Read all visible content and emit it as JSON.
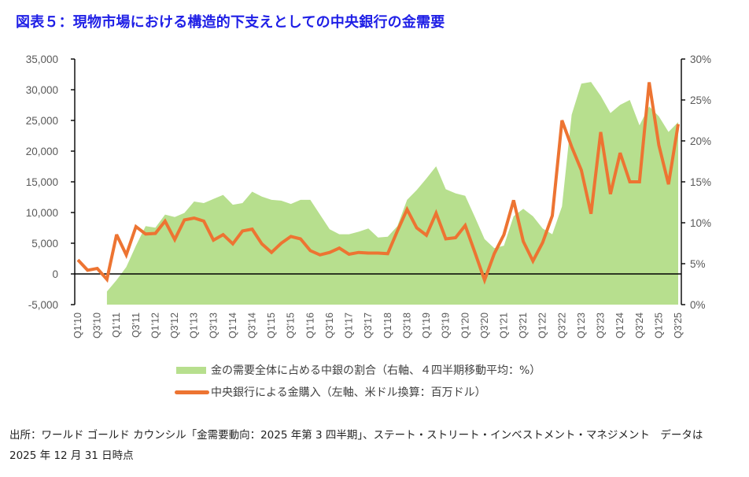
{
  "title": "図表５：現物市場における構造的下支えとしての中央銀行の金需要",
  "chart_data": {
    "type": "line+area",
    "title": "図表５：現物市場における構造的下支えとしての中央銀行の金需要",
    "x": [
      "Q1'10",
      "Q2'10",
      "Q3'10",
      "Q4'10",
      "Q1'11",
      "Q2'11",
      "Q3'11",
      "Q4'11",
      "Q1'12",
      "Q2'12",
      "Q3'12",
      "Q4'12",
      "Q1'13",
      "Q2'13",
      "Q3'13",
      "Q4'13",
      "Q1'14",
      "Q2'14",
      "Q3'14",
      "Q4'14",
      "Q1'15",
      "Q2'15",
      "Q3'15",
      "Q4'15",
      "Q1'16",
      "Q2'16",
      "Q3'16",
      "Q4'16",
      "Q1'17",
      "Q2'17",
      "Q3'17",
      "Q4'17",
      "Q1'18",
      "Q2'18",
      "Q3'18",
      "Q4'18",
      "Q1'19",
      "Q2'19",
      "Q3'19",
      "Q4'19",
      "Q1'20",
      "Q2'20",
      "Q3'20",
      "Q4'20",
      "Q1'21",
      "Q2'21",
      "Q3'21",
      "Q4'21",
      "Q1'22",
      "Q2'22",
      "Q3'22",
      "Q4'22",
      "Q1'23",
      "Q2'23",
      "Q3'23",
      "Q4'23",
      "Q1'24",
      "Q2'24",
      "Q3'24",
      "Q4'24",
      "Q1'25",
      "Q2'25",
      "Q3'25"
    ],
    "xtick_labels": [
      "Q1'10",
      "Q3'10",
      "Q1'11",
      "Q3'11",
      "Q1'12",
      "Q3'12",
      "Q1'13",
      "Q3'13",
      "Q1'14",
      "Q3'14",
      "Q1'15",
      "Q3'15",
      "Q1'16",
      "Q3'16",
      "Q1'17",
      "Q3'17",
      "Q1'18",
      "Q3'18",
      "Q1'19",
      "Q3'19",
      "Q1'20",
      "Q3'20",
      "Q1'21",
      "Q3'21",
      "Q1'22",
      "Q3'22",
      "Q1'23",
      "Q3'23",
      "Q1'24",
      "Q3'24",
      "Q1'25",
      "Q3'25"
    ],
    "series": [
      {
        "name": "金の需要全体に占める中銀の割合（右軸、４四半期移動平均：%）",
        "type": "area",
        "axis": "right",
        "color": "#b7df8e",
        "values": [
          null,
          null,
          null,
          1.6,
          3.0,
          4.6,
          7.2,
          9.6,
          9.4,
          11.0,
          10.7,
          11.2,
          12.6,
          12.4,
          12.9,
          13.4,
          12.2,
          12.4,
          13.8,
          13.2,
          12.8,
          12.7,
          12.3,
          12.8,
          12.8,
          11.0,
          9.2,
          8.6,
          8.6,
          8.9,
          9.3,
          8.2,
          8.3,
          9.6,
          12.8,
          14.0,
          15.4,
          16.9,
          14.1,
          13.6,
          13.3,
          10.7,
          8.0,
          6.9,
          7.2,
          10.8,
          11.7,
          10.8,
          9.3,
          8.6,
          12.0,
          23.2,
          27.0,
          27.2,
          25.5,
          23.4,
          24.4,
          25.0,
          21.9,
          24.2,
          23.0,
          21.1,
          22.3
        ]
      },
      {
        "name": "中央銀行による金購入（左軸、米ドル換算：百万ドル）",
        "type": "line",
        "axis": "left",
        "color": "#ed7432",
        "values": [
          2300,
          600,
          900,
          -900,
          6400,
          3100,
          7700,
          6500,
          6600,
          8600,
          5600,
          8800,
          9100,
          8600,
          5500,
          6400,
          4900,
          7000,
          7300,
          4900,
          3500,
          5000,
          6100,
          5700,
          3800,
          3100,
          3500,
          4200,
          3200,
          3500,
          3400,
          3400,
          3300,
          7000,
          10500,
          7500,
          6300,
          9900,
          5700,
          5900,
          7900,
          3500,
          -1000,
          3300,
          6400,
          12000,
          5300,
          2100,
          5100,
          9500,
          25000,
          20700,
          16900,
          9800,
          23100,
          13000,
          19700,
          15000,
          15000,
          31200,
          21000,
          14600,
          24400
        ]
      }
    ],
    "y_left": {
      "label": "",
      "range": [
        -5000,
        35000
      ],
      "ticks": [
        "-5,000",
        "0",
        "5,000",
        "10,000",
        "15,000",
        "20,000",
        "25,000",
        "30,000",
        "35,000"
      ]
    },
    "y_right": {
      "label": "",
      "range": [
        0,
        30
      ],
      "ticks": [
        "0%",
        "5%",
        "10%",
        "15%",
        "20%",
        "25%",
        "30%"
      ]
    },
    "grid": false,
    "legend_position": "bottom-center"
  },
  "legend": {
    "area_label": "金の需要全体に占める中銀の割合（右軸、４四半期移動平均：%）",
    "line_label": "中央銀行による金購入（左軸、米ドル換算：百万ドル）"
  },
  "source": {
    "line1": "出所：ワールド ゴールド カウンシル「金需要動向：2025 年第 3 四半期」、ステート・ストリート・インベストメント・マネジメント　データは",
    "line2": "2025 年 12 月 31 日時点"
  }
}
